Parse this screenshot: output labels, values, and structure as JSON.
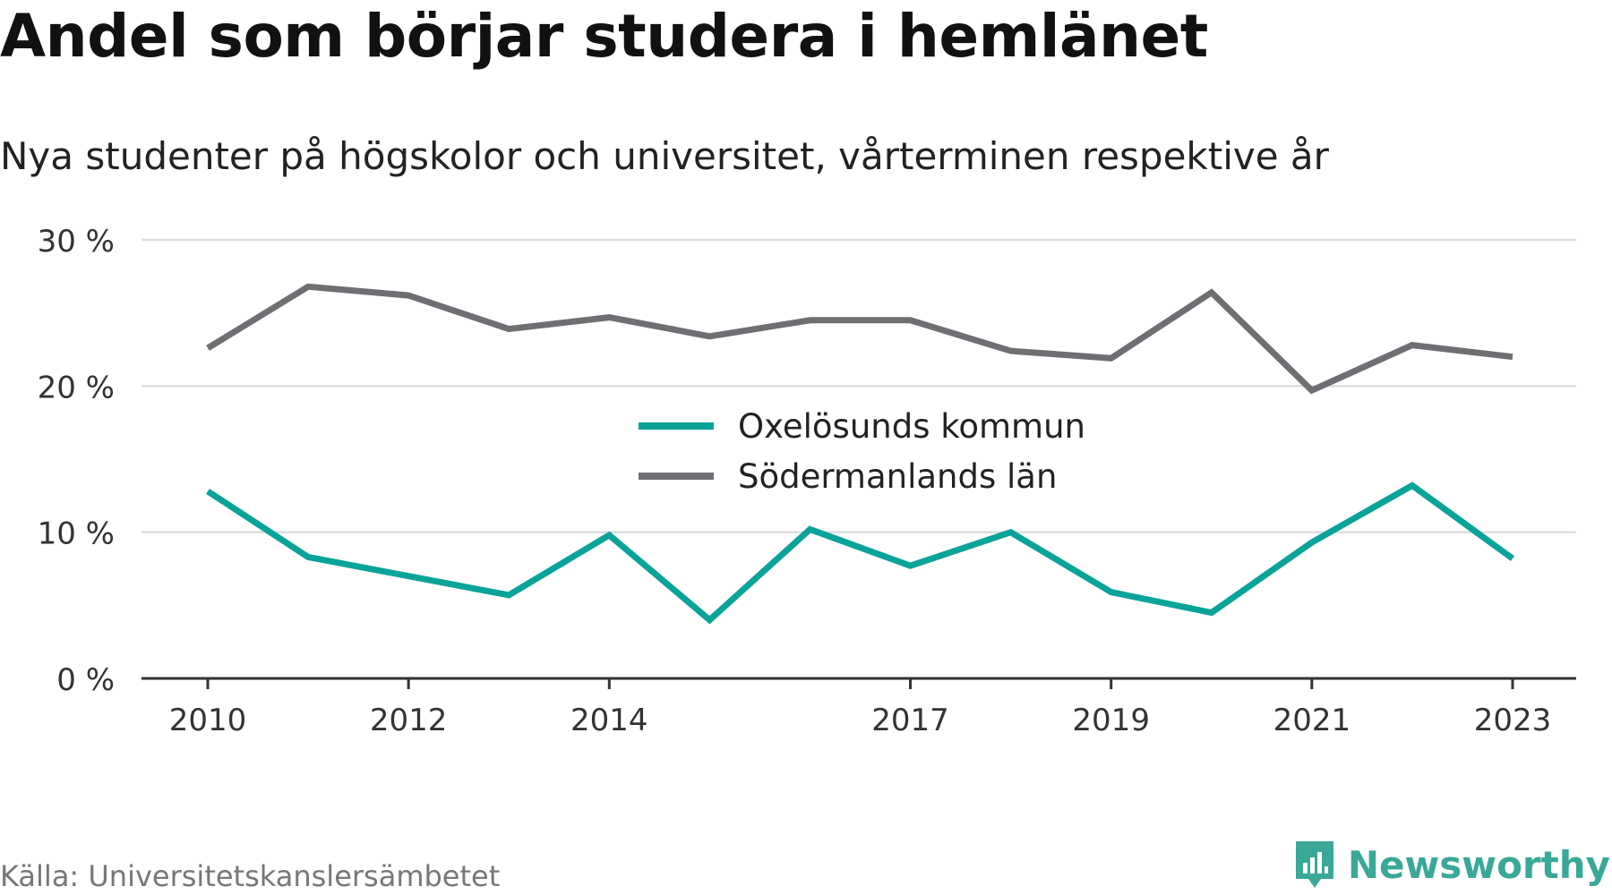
{
  "title": "Andel som börjar studera i hemlänet",
  "subtitle": "Nya studenter på högskolor och universitet, vårterminen respektive år",
  "source": "Källa: Universitetskanslersämbetet",
  "brand": {
    "name": "Newsworthy",
    "icon": "newsworthy-logo-icon",
    "color": "#3aa898"
  },
  "chart_data": {
    "type": "line",
    "x": [
      2010,
      2011,
      2012,
      2013,
      2014,
      2015,
      2016,
      2017,
      2018,
      2019,
      2020,
      2021,
      2022,
      2023
    ],
    "x_ticks": [
      "2010",
      "2012",
      "2014",
      "2017",
      "2019",
      "2021",
      "2023"
    ],
    "y_ticks": [
      0,
      10,
      20,
      30
    ],
    "y_tick_labels": [
      "0 %",
      "10 %",
      "20 %",
      "30 %"
    ],
    "ylim": [
      0,
      30
    ],
    "grid": true,
    "legend_position": "center",
    "series": [
      {
        "name": "Oxelösunds kommun",
        "color": "#0aa39a",
        "values": [
          12.8,
          8.3,
          7.0,
          5.7,
          9.8,
          4.0,
          10.2,
          7.7,
          10.0,
          5.9,
          4.5,
          9.3,
          13.2,
          8.2
        ]
      },
      {
        "name": "Södermanlands län",
        "color": "#6f6e73",
        "values": [
          22.6,
          26.8,
          26.2,
          23.9,
          24.7,
          23.4,
          24.5,
          24.5,
          22.4,
          21.9,
          26.4,
          19.7,
          22.8,
          22.0
        ]
      }
    ]
  }
}
